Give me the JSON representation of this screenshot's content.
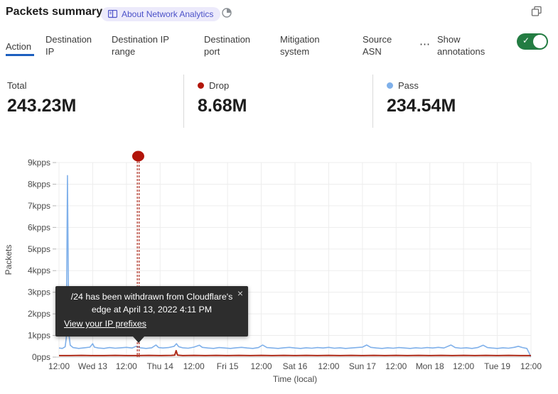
{
  "header": {
    "title": "Packets summary",
    "badge_label": "About Network Analytics",
    "badge_color": "#4b51c8",
    "badge_bg": "#eceafb"
  },
  "icons": {
    "badge_icon": "book-icon",
    "header_time_icon": "time-range-icon",
    "window_copy_icon": "copy-icon",
    "overflow_icon": "ellipsis-icon",
    "overflow_glyph": "⋯",
    "tooltip_close_glyph": "×",
    "toggle_check_glyph": "✓"
  },
  "tabs": [
    {
      "label": "Action",
      "active": true
    },
    {
      "label": "Destination IP",
      "active": false
    },
    {
      "label": "Destination IP range",
      "active": false
    },
    {
      "label": "Destination port",
      "active": false
    },
    {
      "label": "Mitigation system",
      "active": false
    },
    {
      "label": "Source ASN",
      "active": false
    }
  ],
  "annotations_toggle": {
    "label": "Show annotations",
    "state": "on",
    "color": "#237c42"
  },
  "stats": [
    {
      "label": "Total",
      "value": "243.23M",
      "dot_color": null
    },
    {
      "label": "Drop",
      "value": "8.68M",
      "dot_color": "#b2160b"
    },
    {
      "label": "Pass",
      "value": "234.54M",
      "dot_color": "#7fb0ea"
    }
  ],
  "tooltip": {
    "message": "/24 has been withdrawn from Cloudflare's edge at April 13, 2022 4:11 PM",
    "link": "View your IP prefixes"
  },
  "chart_data": {
    "type": "line",
    "xlabel": "Time (local)",
    "ylabel": "Packets",
    "x_range_hours": [
      0,
      168
    ],
    "x_tick_every_hours": 12,
    "x_tick_labels": [
      "12:00",
      "Wed 13",
      "12:00",
      "Thu 14",
      "12:00",
      "Fri 15",
      "12:00",
      "Sat 16",
      "12:00",
      "Sun 17",
      "12:00",
      "Mon 18",
      "12:00",
      "Tue 19",
      "12:00"
    ],
    "y_tick_labels": [
      "0pps",
      "1kpps",
      "2kpps",
      "3kpps",
      "4kpps",
      "5kpps",
      "6kpps",
      "7kpps",
      "8kpps",
      "9kpps"
    ],
    "ylim_kpps": [
      0,
      9
    ],
    "grid": true,
    "series": [
      {
        "name": "Pass",
        "color": "#7fb0ea",
        "width": 1.6,
        "points": [
          [
            0,
            0.42
          ],
          [
            1.2,
            0.4
          ],
          [
            2.2,
            0.48
          ],
          [
            2.6,
            0.9
          ],
          [
            3,
            8.4
          ],
          [
            3.5,
            1.1
          ],
          [
            4,
            0.55
          ],
          [
            5,
            0.44
          ],
          [
            7,
            0.4
          ],
          [
            9,
            0.43
          ],
          [
            11,
            0.46
          ],
          [
            12,
            0.62
          ],
          [
            12.6,
            0.46
          ],
          [
            14,
            0.42
          ],
          [
            16,
            0.4
          ],
          [
            18,
            0.44
          ],
          [
            20,
            0.41
          ],
          [
            22,
            0.43
          ],
          [
            24,
            0.45
          ],
          [
            26,
            0.42
          ],
          [
            27.5,
            0.5
          ],
          [
            29,
            0.43
          ],
          [
            31,
            0.4
          ],
          [
            33,
            0.43
          ],
          [
            34.5,
            0.56
          ],
          [
            35.5,
            0.44
          ],
          [
            37,
            0.42
          ],
          [
            39,
            0.44
          ],
          [
            41,
            0.5
          ],
          [
            41.8,
            0.62
          ],
          [
            42.6,
            0.48
          ],
          [
            44,
            0.43
          ],
          [
            46,
            0.41
          ],
          [
            48,
            0.46
          ],
          [
            50,
            0.55
          ],
          [
            51,
            0.45
          ],
          [
            53,
            0.42
          ],
          [
            55,
            0.4
          ],
          [
            57,
            0.44
          ],
          [
            59,
            0.42
          ],
          [
            61,
            0.4
          ],
          [
            63,
            0.43
          ],
          [
            65,
            0.45
          ],
          [
            67,
            0.42
          ],
          [
            69,
            0.4
          ],
          [
            71,
            0.44
          ],
          [
            72.5,
            0.56
          ],
          [
            74,
            0.44
          ],
          [
            76,
            0.42
          ],
          [
            78,
            0.4
          ],
          [
            80,
            0.43
          ],
          [
            82,
            0.45
          ],
          [
            84,
            0.42
          ],
          [
            86,
            0.4
          ],
          [
            88,
            0.43
          ],
          [
            90,
            0.41
          ],
          [
            92,
            0.44
          ],
          [
            94,
            0.42
          ],
          [
            96,
            0.45
          ],
          [
            98,
            0.41
          ],
          [
            100,
            0.43
          ],
          [
            102,
            0.4
          ],
          [
            104,
            0.42
          ],
          [
            106,
            0.44
          ],
          [
            108,
            0.46
          ],
          [
            109.5,
            0.56
          ],
          [
            111,
            0.45
          ],
          [
            113,
            0.42
          ],
          [
            115,
            0.4
          ],
          [
            117,
            0.43
          ],
          [
            119,
            0.41
          ],
          [
            121,
            0.44
          ],
          [
            123,
            0.42
          ],
          [
            125,
            0.4
          ],
          [
            127,
            0.43
          ],
          [
            129,
            0.41
          ],
          [
            131,
            0.44
          ],
          [
            133,
            0.42
          ],
          [
            135,
            0.45
          ],
          [
            137,
            0.42
          ],
          [
            139.5,
            0.56
          ],
          [
            141,
            0.44
          ],
          [
            143,
            0.41
          ],
          [
            145,
            0.43
          ],
          [
            147,
            0.4
          ],
          [
            149,
            0.44
          ],
          [
            151,
            0.55
          ],
          [
            152.5,
            0.44
          ],
          [
            154,
            0.42
          ],
          [
            156,
            0.4
          ],
          [
            158,
            0.43
          ],
          [
            160,
            0.41
          ],
          [
            162,
            0.45
          ],
          [
            163.5,
            0.5
          ],
          [
            165,
            0.44
          ],
          [
            166.5,
            0.4
          ],
          [
            167.4,
            0.18
          ],
          [
            167.8,
            0.04
          ],
          [
            168,
            0.03
          ]
        ]
      },
      {
        "name": "Drop",
        "color": "#ae2a18",
        "width": 2,
        "points": [
          [
            0,
            0.07
          ],
          [
            4,
            0.07
          ],
          [
            8,
            0.08
          ],
          [
            12,
            0.07
          ],
          [
            16,
            0.07
          ],
          [
            20,
            0.08
          ],
          [
            24,
            0.07
          ],
          [
            28,
            0.07
          ],
          [
            32,
            0.08
          ],
          [
            36,
            0.07
          ],
          [
            40,
            0.08
          ],
          [
            41.2,
            0.09
          ],
          [
            41.7,
            0.3
          ],
          [
            42.2,
            0.09
          ],
          [
            44,
            0.07
          ],
          [
            48,
            0.08
          ],
          [
            52,
            0.07
          ],
          [
            56,
            0.08
          ],
          [
            60,
            0.07
          ],
          [
            64,
            0.08
          ],
          [
            68,
            0.07
          ],
          [
            72,
            0.08
          ],
          [
            76,
            0.07
          ],
          [
            80,
            0.08
          ],
          [
            84,
            0.07
          ],
          [
            88,
            0.08
          ],
          [
            92,
            0.07
          ],
          [
            96,
            0.08
          ],
          [
            100,
            0.07
          ],
          [
            104,
            0.08
          ],
          [
            108,
            0.07
          ],
          [
            112,
            0.08
          ],
          [
            116,
            0.07
          ],
          [
            120,
            0.08
          ],
          [
            124,
            0.07
          ],
          [
            128,
            0.08
          ],
          [
            132,
            0.07
          ],
          [
            136,
            0.08
          ],
          [
            140,
            0.07
          ],
          [
            144,
            0.08
          ],
          [
            148,
            0.07
          ],
          [
            152,
            0.08
          ],
          [
            156,
            0.07
          ],
          [
            160,
            0.08
          ],
          [
            164,
            0.07
          ],
          [
            168,
            0.07
          ]
        ]
      }
    ],
    "annotation": {
      "x_hour": 28.2,
      "color": "#a31505",
      "marker": "red-dot",
      "text": "/24 has been withdrawn from Cloudflare's edge at April 13, 2022 4:11 PM"
    }
  }
}
